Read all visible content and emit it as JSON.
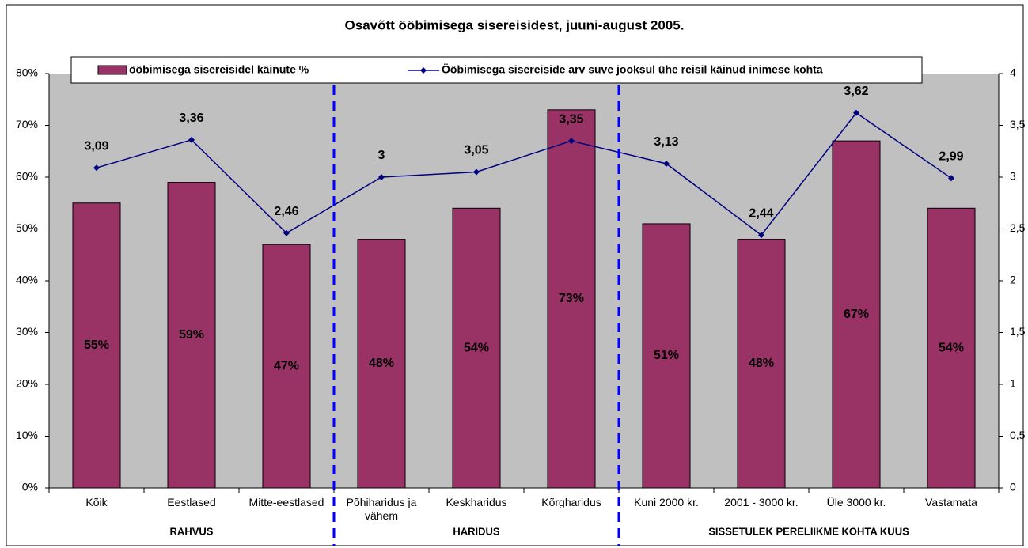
{
  "chart_data": {
    "type": "bar",
    "title": "Osavõtt ööbimisega sisereisidest, juuni-august 2005.",
    "categories": [
      "Kõik",
      "Eestlased",
      "Mitte-eestlased",
      "Põhiharidus ja vähem",
      "Keskharidus",
      "Kõrgharidus",
      "Kuni 2000 kr.",
      "2001 - 3000 kr.",
      "Üle 3000 kr.",
      "Vastamata"
    ],
    "series": [
      {
        "name": "ööbimisega sisereisidel käinute %",
        "type": "bar",
        "color": "#993366",
        "values": [
          55,
          59,
          47,
          48,
          54,
          73,
          51,
          48,
          67,
          54
        ],
        "value_labels": [
          "55%",
          "59%",
          "47%",
          "48%",
          "54%",
          "73%",
          "51%",
          "48%",
          "67%",
          "54%"
        ]
      },
      {
        "name": "Ööbimisega sisereiside arv suve jooksul ühe reisil käinud inimese kohta",
        "type": "line",
        "axis": "y2",
        "color": "#000080",
        "values": [
          3.09,
          3.36,
          2.46,
          3,
          3.05,
          3.35,
          3.13,
          2.44,
          3.62,
          2.99
        ],
        "value_labels": [
          "3,09",
          "3,36",
          "2,46",
          "3",
          "3,05",
          "3,35",
          "3,13",
          "2,44",
          "3,62",
          "2,99"
        ]
      }
    ],
    "groups": [
      "RAHVUS",
      "HARIDUS",
      "SISSETULEK PERELIIKME KOHTA KUUS"
    ],
    "ylim": [
      0,
      80
    ],
    "yticks": [
      {
        "value": 0,
        "label": "0%"
      },
      {
        "value": 10,
        "label": "10%"
      },
      {
        "value": 20,
        "label": "20%"
      },
      {
        "value": 30,
        "label": "30%"
      },
      {
        "value": 40,
        "label": "40%"
      },
      {
        "value": 50,
        "label": "50%"
      },
      {
        "value": 60,
        "label": "60%"
      },
      {
        "value": 70,
        "label": "70%"
      },
      {
        "value": 80,
        "label": "80%"
      }
    ],
    "y2lim": [
      0,
      4
    ],
    "y2ticks": [
      0,
      {
        "value": 0.5,
        "label": "0,5"
      },
      1,
      {
        "value": 1.5,
        "label": "1,5"
      },
      2,
      {
        "value": 2.5,
        "label": "2,5"
      },
      3,
      {
        "value": 3.5,
        "label": "3,5"
      },
      4
    ],
    "plot_background": "#c0c0c0",
    "legend": "top"
  }
}
